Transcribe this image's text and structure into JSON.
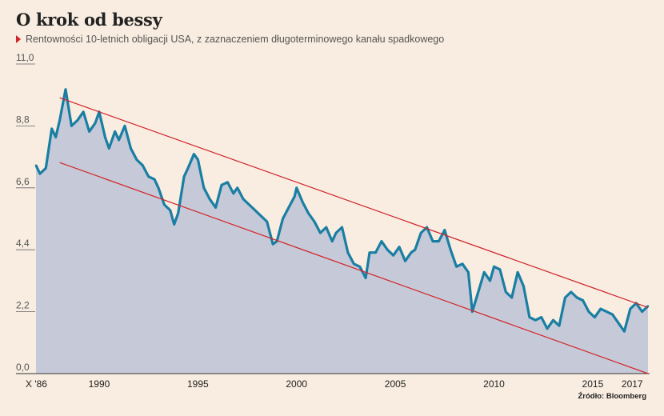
{
  "title": "O krok od bessy",
  "subtitle": "Rentowności 10-letnich obligacji USA, z zaznaczeniem długoterminowego kanału spadkowego",
  "source": "Źródło: Bloomberg",
  "colors": {
    "line": "#1a7ea3",
    "area": "#c6cad8",
    "channel": "#d2232a",
    "background": "#f8ede0"
  },
  "chart_data": {
    "type": "area",
    "title": "O krok od bessy",
    "subtitle": "Rentowności 10-letnich obligacji USA, z zaznaczeniem długoterminowego kanału spadkowego",
    "ylim": [
      0,
      11
    ],
    "xlim": [
      1986.8,
      2017.8
    ],
    "yticks": [
      0,
      2.2,
      4.4,
      6.6,
      8.8,
      11
    ],
    "ytick_labels": [
      "0,0",
      "2,2",
      "4,4",
      "6,6",
      "8,8",
      "11,0"
    ],
    "xticks": [
      1986.8,
      1990,
      1995,
      2000,
      2005,
      2010,
      2015,
      2017
    ],
    "xtick_labels": [
      "X '86",
      "1990",
      "1995",
      "2000",
      "2005",
      "2010",
      "2015",
      "2017"
    ],
    "grid": false,
    "series": [
      {
        "x": [
          1986.8,
          1987.0,
          1987.3,
          1987.6,
          1987.8,
          1988.0,
          1988.3,
          1988.6,
          1988.9,
          1989.2,
          1989.5,
          1989.8,
          1990.0,
          1990.3,
          1990.5,
          1990.8,
          1991.0,
          1991.3,
          1991.6,
          1991.9,
          1992.2,
          1992.5,
          1992.8,
          1993.0,
          1993.3,
          1993.6,
          1993.8,
          1994.0,
          1994.3,
          1994.5,
          1994.8,
          1995.0,
          1995.3,
          1995.6,
          1995.9,
          1996.2,
          1996.5,
          1996.8,
          1997.0,
          1997.3,
          1997.6,
          1997.9,
          1998.2,
          1998.5,
          1998.8,
          1999.0,
          1999.3,
          1999.6,
          1999.9,
          2000.0,
          2000.3,
          2000.6,
          2000.9,
          2001.2,
          2001.5,
          2001.8,
          2002.0,
          2002.3,
          2002.6,
          2002.9,
          2003.2,
          2003.5,
          2003.7,
          2004.0,
          2004.3,
          2004.6,
          2004.9,
          2005.2,
          2005.5,
          2005.8,
          2006.0,
          2006.3,
          2006.6,
          2006.9,
          2007.2,
          2007.5,
          2007.8,
          2008.1,
          2008.4,
          2008.7,
          2008.9,
          2009.2,
          2009.5,
          2009.8,
          2010.0,
          2010.3,
          2010.6,
          2010.9,
          2011.2,
          2011.5,
          2011.8,
          2012.1,
          2012.4,
          2012.7,
          2013.0,
          2013.3,
          2013.6,
          2013.9,
          2014.2,
          2014.5,
          2014.8,
          2015.1,
          2015.4,
          2015.7,
          2016.0,
          2016.3,
          2016.6,
          2016.9,
          2017.2,
          2017.5,
          2017.8
        ],
        "values": [
          7.4,
          7.1,
          7.3,
          8.7,
          8.4,
          9.0,
          10.1,
          8.8,
          9.0,
          9.3,
          8.6,
          8.9,
          9.3,
          8.4,
          8.0,
          8.6,
          8.3,
          8.8,
          8.0,
          7.6,
          7.4,
          7.0,
          6.9,
          6.6,
          6.0,
          5.8,
          5.3,
          5.7,
          7.0,
          7.3,
          7.8,
          7.6,
          6.6,
          6.2,
          5.9,
          6.7,
          6.8,
          6.4,
          6.6,
          6.2,
          6.0,
          5.8,
          5.6,
          5.4,
          4.6,
          4.7,
          5.5,
          5.9,
          6.3,
          6.6,
          6.1,
          5.7,
          5.4,
          5.0,
          5.2,
          4.7,
          5.0,
          5.2,
          4.3,
          3.9,
          3.8,
          3.4,
          4.3,
          4.3,
          4.7,
          4.4,
          4.2,
          4.5,
          4.0,
          4.3,
          4.4,
          5.0,
          5.2,
          4.7,
          4.7,
          5.1,
          4.4,
          3.8,
          3.9,
          3.6,
          2.2,
          2.9,
          3.6,
          3.3,
          3.8,
          3.7,
          2.9,
          2.7,
          3.6,
          3.1,
          2.0,
          1.9,
          2.0,
          1.6,
          1.9,
          1.7,
          2.7,
          2.9,
          2.7,
          2.6,
          2.2,
          2.0,
          2.3,
          2.2,
          2.1,
          1.8,
          1.5,
          2.3,
          2.5,
          2.2,
          2.4
        ]
      }
    ],
    "channel_lines": [
      {
        "x": [
          1988.0,
          2017.8
        ],
        "values": [
          9.8,
          2.35
        ]
      },
      {
        "x": [
          1988.0,
          2017.8
        ],
        "values": [
          7.5,
          0.0
        ]
      }
    ]
  }
}
